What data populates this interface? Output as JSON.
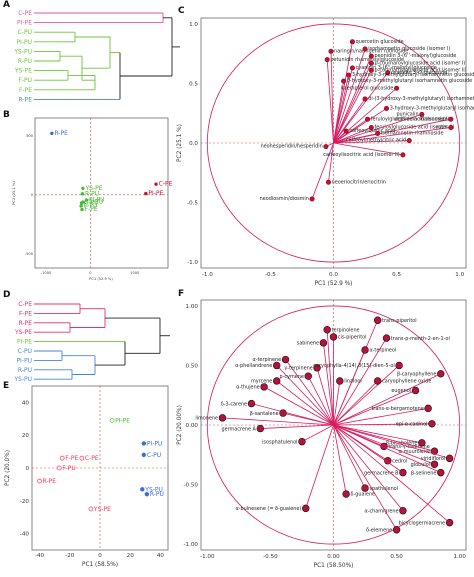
{
  "figure_labels": {
    "A": "A",
    "B": "B",
    "C": "C",
    "D": "D",
    "E": "E",
    "F": "F"
  },
  "colors": {
    "pe_pink": "#e8559f",
    "pu_green": "#6fc43a",
    "pu_blue": "#4a86d8",
    "c_pink": "#e62f73",
    "crimson": "#c8102e",
    "red_pe": "#ff3355",
    "blue_pt": "#3b6fd6",
    "green_pt": "#44bb33",
    "axis_dash": "#d64a4a",
    "circle": "#d81b60"
  },
  "chart_data": [
    {
      "id": "A",
      "type": "dendrogram",
      "leaves": [
        {
          "label": "C-PE",
          "color": "#e8559f"
        },
        {
          "label": "PI-PE",
          "color": "#e8559f"
        },
        {
          "label": "C-PU",
          "color": "#6fc43a"
        },
        {
          "label": "PI-PU",
          "color": "#6fc43a"
        },
        {
          "label": "YS-PU",
          "color": "#6fc43a"
        },
        {
          "label": "R-PU",
          "color": "#6fc43a"
        },
        {
          "label": "YS-PE",
          "color": "#6fc43a"
        },
        {
          "label": "F-PU",
          "color": "#6fc43a"
        },
        {
          "label": "F-PE",
          "color": "#6fc43a"
        },
        {
          "label": "R-PE",
          "color": "#4a86d8"
        }
      ]
    },
    {
      "id": "B",
      "type": "scatter",
      "xlabel": "PC1 (52.9 %)",
      "ylabel": "PC2 (25.1 %)",
      "xticks": [
        "-1000",
        "0",
        "1000"
      ],
      "yticks": [
        "500",
        "0",
        "-500"
      ],
      "points": [
        {
          "label": "R-PE",
          "x": -870,
          "y": 520,
          "color": "#3b6fd6"
        },
        {
          "label": "C-PE",
          "x": 1480,
          "y": 90,
          "color": "#c8102e"
        },
        {
          "label": "PI-PE",
          "x": 1250,
          "y": 10,
          "color": "#c8102e"
        },
        {
          "label": "YS-PE",
          "x": -170,
          "y": 55,
          "color": "#44bb33"
        },
        {
          "label": "R-PU",
          "x": -180,
          "y": 8,
          "color": "#44bb33"
        },
        {
          "label": "PI-PU",
          "x": -90,
          "y": -45,
          "color": "#44bb33"
        },
        {
          "label": "YS-PU",
          "x": -170,
          "y": -62,
          "color": "#44bb33"
        },
        {
          "label": "C-PU",
          "x": -200,
          "y": -70,
          "color": "#44bb33"
        },
        {
          "label": "F-PU",
          "x": -210,
          "y": -95,
          "color": "#44bb33"
        },
        {
          "label": "F-PE",
          "x": -190,
          "y": -125,
          "color": "#44bb33"
        }
      ]
    },
    {
      "id": "C",
      "type": "biplot",
      "xlabel": "PC1 (52.9 %)",
      "ylabel": "PC2 (25.1 %)",
      "xlim": [
        -1.05,
        1.05
      ],
      "ylim": [
        -1.05,
        1.05
      ],
      "xticks": [
        "-1.0",
        "-0.5",
        "0.0",
        "0.5",
        "1.0"
      ],
      "yticks": [
        "1.0",
        "0.5",
        "0.0",
        "-0.5",
        "-1.0"
      ],
      "vectors": [
        {
          "label": "quercetin glucoside",
          "x": 0.15,
          "y": 0.85
        },
        {
          "label": "naringin/naringenin rutinoside",
          "x": -0.02,
          "y": 0.77
        },
        {
          "label": "petunidin rhamnosylglucoside",
          "x": -0.05,
          "y": 0.7
        },
        {
          "label": "isorhamnetin glucoside (isomer I)",
          "x": 0.25,
          "y": 0.79
        },
        {
          "label": "peonidin 3-(6''-malonyl)glucoside",
          "x": 0.3,
          "y": 0.73
        },
        {
          "label": "p-coumaroylglucoside acid (isomer I)",
          "x": 0.3,
          "y": 0.67
        },
        {
          "label": "cyanidin 3-(6''-malonyl)glucoside",
          "x": 0.15,
          "y": 0.63
        },
        {
          "label": "cyanidin 3-O-glucoside",
          "x": 0.43,
          "y": 0.59
        },
        {
          "label": "3-hydroxy-3-methylglutaryl isorhamnetin glucoside (I)",
          "x": 0.12,
          "y": 0.57
        },
        {
          "label": "p-coumaroylglucoside acid (isomer II)",
          "x": 0.3,
          "y": 0.61
        },
        {
          "label": "3-hydroxy-3-methylglutaryl isorhamnetin glucoside (II)",
          "x": 0.08,
          "y": 0.52
        },
        {
          "label": "kaempferol glucoside",
          "x": 0.5,
          "y": 0.46
        },
        {
          "label": "di-(3-hydroxy-3-methylglutaryl) isorhamnetin glucoside",
          "x": 0.25,
          "y": 0.37
        },
        {
          "label": "3-hydroxy-3-methylglutaryl isorhamnetin",
          "x": 0.42,
          "y": 0.29
        },
        {
          "label": "feruloylglucoside acid (isomer I)",
          "x": 0.27,
          "y": 0.2
        },
        {
          "label": "feruloylglucoside acid (isomer II)",
          "x": 0.3,
          "y": 0.13
        },
        {
          "label": "punicalin",
          "x": 0.7,
          "y": 0.24
        },
        {
          "label": "delfinidin rhamnoside",
          "x": 0.93,
          "y": 0.2
        },
        {
          "label": "caffeoylquinic acid",
          "x": 0.1,
          "y": 0.1
        },
        {
          "label": "isorhamnetin rhamnoside",
          "x": 0.35,
          "y": 0.08
        },
        {
          "label": "rutin",
          "x": 0.93,
          "y": 0.13
        },
        {
          "label": "neohesperidin/hesperidin",
          "x": -0.06,
          "y": -0.03
        },
        {
          "label": "caffeoylmethylcitric acid",
          "x": 0.6,
          "y": 0.02
        },
        {
          "label": "caffeoylisocitric acid (isomer II)",
          "x": 0.55,
          "y": -0.1
        },
        {
          "label": "neoeriocitrin/eriocitrin",
          "x": -0.04,
          "y": -0.33
        },
        {
          "label": "neodiosmin/diosmin",
          "x": -0.17,
          "y": -0.47
        }
      ]
    },
    {
      "id": "D",
      "type": "dendrogram",
      "leaves": [
        {
          "label": "C-PE",
          "color": "#e62f73"
        },
        {
          "label": "F-PE",
          "color": "#e62f73"
        },
        {
          "label": "R-PE",
          "color": "#e62f73"
        },
        {
          "label": "YS-PE",
          "color": "#e62f73"
        },
        {
          "label": "C-PU",
          "color": "#4a86d8"
        },
        {
          "label": "PI-PU",
          "color": "#4a86d8"
        },
        {
          "label": "R-PU",
          "color": "#4a86d8"
        },
        {
          "label": "YS-PU",
          "color": "#4a86d8"
        }
      ],
      "pi_pe": {
        "label": "PI-PE",
        "color": "#6fc43a"
      }
    },
    {
      "id": "E",
      "type": "scatter",
      "xlabel": "PC1 (58.5%)",
      "ylabel": "PC2 (20.0%)",
      "xlim": [
        -45,
        45
      ],
      "ylim": [
        -50,
        50
      ],
      "xticks": [
        -40,
        -20,
        0,
        20,
        40
      ],
      "yticks": [
        40,
        20,
        0,
        -20,
        -40
      ],
      "points": [
        {
          "label": "PI-PE",
          "x": 8,
          "y": 29,
          "color": "#44bb33",
          "open": true
        },
        {
          "label": "PI-PU",
          "x": 29,
          "y": 15,
          "color": "#3b6fd6",
          "open": false
        },
        {
          "label": "C-PU",
          "x": 29,
          "y": 8,
          "color": "#3b6fd6",
          "open": false
        },
        {
          "label": "C-PE",
          "x": -12,
          "y": 6,
          "color": "#ff3355",
          "open": true
        },
        {
          "label": "F-PE",
          "x": -25,
          "y": 6,
          "color": "#ff3355",
          "open": true
        },
        {
          "label": "F-PU",
          "x": -27,
          "y": 0,
          "color": "#ff3355",
          "open": true
        },
        {
          "label": "R-PE",
          "x": -40,
          "y": -8,
          "color": "#ff3355",
          "open": true
        },
        {
          "label": "YS-PU",
          "x": 28,
          "y": -13,
          "color": "#3b6fd6",
          "open": false
        },
        {
          "label": "R-PU",
          "x": 31,
          "y": -16,
          "color": "#3b6fd6",
          "open": false
        },
        {
          "label": "YS-PE",
          "x": -6,
          "y": -25,
          "color": "#ff3355",
          "open": true
        }
      ]
    },
    {
      "id": "F",
      "type": "biplot",
      "xlabel": "PC1 (58.50%)",
      "ylabel": "PC2 (20.00%)",
      "xlim": [
        -1.05,
        1.05
      ],
      "ylim": [
        -1.05,
        1.05
      ],
      "xticks": [
        "-1.00",
        "-0.50",
        "0.00",
        "0.50",
        "1.00"
      ],
      "yticks": [
        "1.00",
        "0.50",
        "0.00",
        "-0.50",
        "-1.00"
      ],
      "vectors": [
        {
          "label": "trans-piperitol",
          "x": 0.35,
          "y": 0.88
        },
        {
          "label": "terpinolene",
          "x": -0.05,
          "y": 0.8
        },
        {
          "label": "cis-piperitol",
          "x": 0.0,
          "y": 0.74
        },
        {
          "label": "trans-p-menth-2-en-1-ol",
          "x": 0.42,
          "y": 0.73
        },
        {
          "label": "sabinene",
          "x": -0.08,
          "y": 0.69
        },
        {
          "label": "α-terpineol",
          "x": 0.25,
          "y": 0.63
        },
        {
          "label": "α-terpinene",
          "x": -0.38,
          "y": 0.55
        },
        {
          "label": "α-phellandrene",
          "x": -0.45,
          "y": 0.5
        },
        {
          "label": "γ-terpinene",
          "x": -0.13,
          "y": 0.48
        },
        {
          "label": "caryophylla-4(14),8(15)-dien-5-ol",
          "x": 0.52,
          "y": 0.5
        },
        {
          "label": "p-cymene",
          "x": -0.2,
          "y": 0.41
        },
        {
          "label": "myrcene",
          "x": -0.45,
          "y": 0.37
        },
        {
          "label": "linalool",
          "x": 0.05,
          "y": 0.37
        },
        {
          "label": "caryophyllene oxide",
          "x": 0.35,
          "y": 0.37
        },
        {
          "label": "α-thujene",
          "x": -0.55,
          "y": 0.32
        },
        {
          "label": "β-caryophyllene",
          "x": 0.85,
          "y": 0.43
        },
        {
          "label": "eugenol",
          "x": 0.65,
          "y": 0.29
        },
        {
          "label": "δ-3-carene",
          "x": -0.65,
          "y": 0.18
        },
        {
          "label": "β-santalene",
          "x": -0.4,
          "y": 0.1
        },
        {
          "label": "trans-α-bergamotene",
          "x": 0.75,
          "y": 0.14
        },
        {
          "label": "limonene",
          "x": -0.88,
          "y": 0.06
        },
        {
          "label": "epi-α-cadinol",
          "x": 0.78,
          "y": 0.01
        },
        {
          "label": "germacrene A",
          "x": -0.58,
          "y": -0.03
        },
        {
          "label": "isosphatulenol",
          "x": -0.25,
          "y": -0.14
        },
        {
          "label": "β-bisabolene",
          "x": 0.7,
          "y": -0.15
        },
        {
          "label": "trans-γ-cadinene",
          "x": 0.4,
          "y": -0.18
        },
        {
          "label": "α-muurolene",
          "x": 0.8,
          "y": -0.22
        },
        {
          "label": "viridiflorol",
          "x": 0.92,
          "y": -0.28
        },
        {
          "label": "cedrol",
          "x": 0.43,
          "y": -0.3
        },
        {
          "label": "globulol",
          "x": 0.8,
          "y": -0.33
        },
        {
          "label": "germacrene B",
          "x": 0.55,
          "y": -0.4
        },
        {
          "label": "β-selinene",
          "x": 0.85,
          "y": -0.4
        },
        {
          "label": "spathulenol",
          "x": 0.25,
          "y": -0.53
        },
        {
          "label": "δ-guaiene",
          "x": 0.1,
          "y": -0.58
        },
        {
          "label": "α-bulnesene (= δ-guaiene)",
          "x": -0.22,
          "y": -0.7
        },
        {
          "label": "α-chamigrene",
          "x": 0.55,
          "y": -0.72
        },
        {
          "label": "bicyclogermacrene",
          "x": 0.92,
          "y": -0.82
        },
        {
          "label": "δ-elemene",
          "x": 0.5,
          "y": -0.88
        }
      ]
    }
  ]
}
